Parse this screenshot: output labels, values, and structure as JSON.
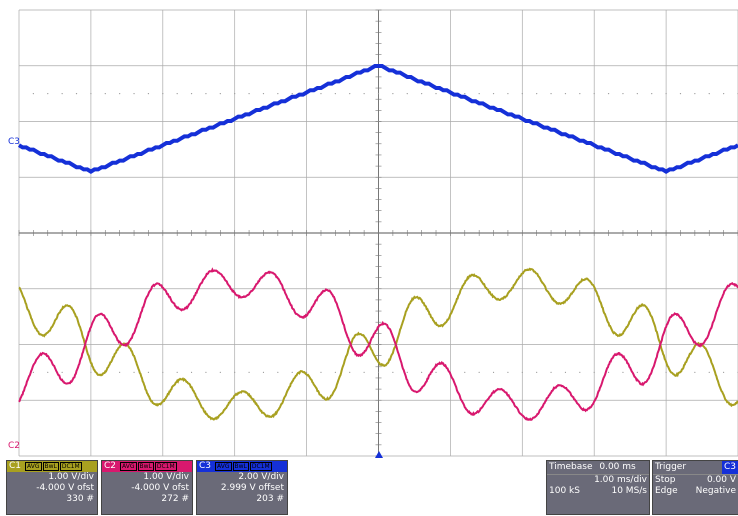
{
  "colors": {
    "c1": "#a8a020",
    "c2": "#d8186e",
    "c3": "#1530d8",
    "grid": "#aaaaaa",
    "background": "#ffffff",
    "panel": "#6a6a78"
  },
  "markers": {
    "c3": "C3",
    "c2": "C2"
  },
  "channels": [
    {
      "name": "C1",
      "tags": [
        "AVG",
        "BwL",
        "DC1M"
      ],
      "vdiv": "1.00 V/div",
      "offset": "-4.000 V ofst",
      "count": "330 #"
    },
    {
      "name": "C2",
      "tags": [
        "AVG",
        "BwL",
        "DC1M"
      ],
      "vdiv": "1.00 V/div",
      "offset": "-4.000 V ofst",
      "count": "272 #"
    },
    {
      "name": "C3",
      "tags": [
        "AVG",
        "BwL",
        "DC1M"
      ],
      "vdiv": "2.00 V/div",
      "offset": "2.999 V offset",
      "count": "203 #"
    }
  ],
  "timebase": {
    "label": "Timebase",
    "value": "0.00 ms",
    "per_div": "1.00 ms/div",
    "samples": "100 kS",
    "rate": "10 MS/s"
  },
  "trigger": {
    "label": "Trigger",
    "source": "C3",
    "level": "0.00 V",
    "mode": "Stop",
    "type": "Edge",
    "slope": "Negative"
  },
  "chart_data": {
    "type": "line",
    "x_range_ms": [
      -5,
      5
    ],
    "grid": "on",
    "series": [
      {
        "name": "C3",
        "color": "#1530d8",
        "shape": "triangle",
        "period_ms": 8,
        "peaks_ms": [
          0
        ],
        "troughs_ms": [
          -4,
          4
        ],
        "peak_div": 3.5,
        "trough_div": 1.6
      },
      {
        "name": "C1",
        "color": "#a8a020",
        "shape": "sine with slow drift",
        "ripple_period_ms": 0.8
      },
      {
        "name": "C2",
        "color": "#d8186e",
        "shape": "sine with slow drift",
        "ripple_period_ms": 0.8
      }
    ]
  }
}
